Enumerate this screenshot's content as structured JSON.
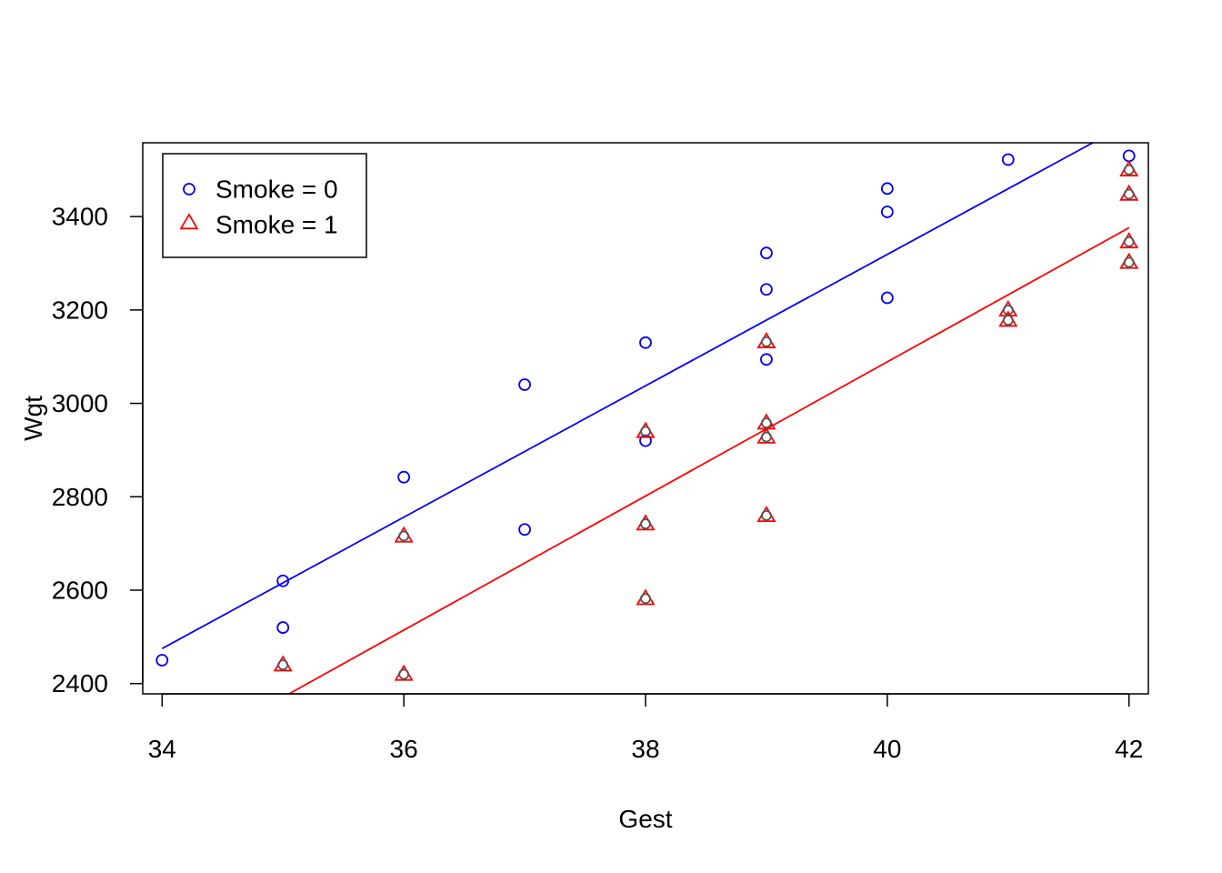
{
  "chart_data": {
    "type": "scatter",
    "title": "",
    "xlabel": "Gest",
    "ylabel": "Wgt",
    "xlim": [
      33.84,
      42.16
    ],
    "ylim": [
      2378,
      3558
    ],
    "xticks": [
      34,
      36,
      38,
      40,
      42
    ],
    "yticks": [
      2400,
      2600,
      2800,
      3000,
      3200,
      3400
    ],
    "grid": false,
    "legend": {
      "position": "top-left",
      "entries": [
        {
          "label": "Smoke = 0",
          "marker": "circle",
          "color": "#0000FF"
        },
        {
          "label": "Smoke = 1",
          "marker": "triangle",
          "color": "#FF0000"
        }
      ]
    },
    "series": [
      {
        "name": "Smoke = 0",
        "marker": "circle",
        "color": "#0000FF",
        "points": [
          [
            34,
            2450
          ],
          [
            35,
            2620
          ],
          [
            35,
            2520
          ],
          [
            36,
            2842
          ],
          [
            37,
            3040
          ],
          [
            37,
            2730
          ],
          [
            38,
            3130
          ],
          [
            38,
            2920
          ],
          [
            39,
            3322
          ],
          [
            39,
            3244
          ],
          [
            39,
            3094
          ],
          [
            40,
            3460
          ],
          [
            40,
            3410
          ],
          [
            40,
            3226
          ],
          [
            41,
            3522
          ],
          [
            42,
            3530
          ]
        ],
        "fit_line": {
          "x": [
            34,
            41.7
          ],
          "y": [
            2475,
            3558
          ]
        }
      },
      {
        "name": "Smoke = 1",
        "marker": "triangle",
        "color": "#FF0000",
        "points": [
          [
            35,
            2440
          ],
          [
            36,
            2716
          ],
          [
            36,
            2420
          ],
          [
            38,
            2940
          ],
          [
            38,
            2742
          ],
          [
            38,
            2582
          ],
          [
            39,
            3132
          ],
          [
            39,
            2958
          ],
          [
            39,
            2928
          ],
          [
            39,
            2760
          ],
          [
            41,
            3200
          ],
          [
            41,
            3178
          ],
          [
            42,
            3500
          ],
          [
            42,
            3448
          ],
          [
            42,
            3346
          ],
          [
            42,
            3302
          ]
        ],
        "fit_line": {
          "x": [
            35.05,
            42
          ],
          "y": [
            2378,
            3376
          ]
        }
      }
    ]
  }
}
